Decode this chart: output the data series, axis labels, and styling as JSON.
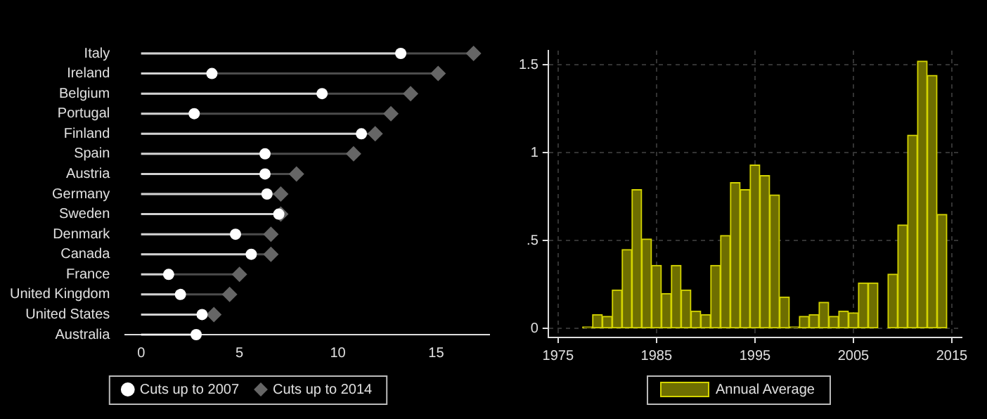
{
  "chart_data": [
    {
      "type": "lollipop",
      "orientation": "horizontal",
      "categories": [
        "Italy",
        "Ireland",
        "Belgium",
        "Portugal",
        "Finland",
        "Spain",
        "Austria",
        "Germany",
        "Sweden",
        "Denmark",
        "Canada",
        "France",
        "United Kingdom",
        "United States",
        "Australia"
      ],
      "series": [
        {
          "name": "Cuts up to 2007",
          "color": "#ffffff",
          "marker": "circle",
          "values": [
            13.2,
            3.6,
            9.2,
            2.7,
            11.2,
            6.3,
            6.3,
            6.4,
            7.0,
            4.8,
            5.6,
            1.4,
            2.0,
            3.1,
            2.8
          ]
        },
        {
          "name": "Cuts up to 2014",
          "color": "#666666",
          "marker": "diamond",
          "values": [
            16.9,
            15.1,
            13.7,
            12.7,
            11.9,
            10.8,
            7.9,
            7.1,
            7.1,
            6.6,
            6.6,
            5.0,
            4.5,
            3.7,
            null
          ]
        }
      ],
      "xlim": [
        -0.8,
        17.7
      ],
      "xticks": [
        0,
        5,
        10,
        15
      ],
      "grid": false,
      "legend": "bottom"
    },
    {
      "type": "bar",
      "x": [
        1978,
        1979,
        1980,
        1981,
        1982,
        1983,
        1984,
        1985,
        1986,
        1987,
        1988,
        1989,
        1990,
        1991,
        1992,
        1993,
        1994,
        1995,
        1996,
        1997,
        1998,
        1999,
        2000,
        2001,
        2002,
        2003,
        2004,
        2005,
        2006,
        2007,
        2008,
        2009,
        2010,
        2011,
        2012,
        2013,
        2014
      ],
      "series": [
        {
          "name": "Annual Average",
          "color": "#6e6e00",
          "values": [
            0.01,
            0.08,
            0.07,
            0.22,
            0.45,
            0.79,
            0.51,
            0.36,
            0.2,
            0.36,
            0.22,
            0.1,
            0.08,
            0.36,
            0.53,
            0.83,
            0.79,
            0.93,
            0.87,
            0.76,
            0.18,
            0.01,
            0.07,
            0.08,
            0.15,
            0.07,
            0.1,
            0.09,
            0.26,
            0.26,
            null,
            0.31,
            0.59,
            1.1,
            1.52,
            1.44,
            0.65
          ]
        }
      ],
      "xlim": [
        1974,
        2016
      ],
      "xticks": [
        1975,
        1985,
        1995,
        2005,
        2015
      ],
      "ylim": [
        -0.05,
        1.58
      ],
      "yticks": [
        0,
        {
          "value": 0.5,
          "label": ".5"
        },
        1,
        1.5
      ],
      "grid": true,
      "legend": "bottom"
    }
  ]
}
